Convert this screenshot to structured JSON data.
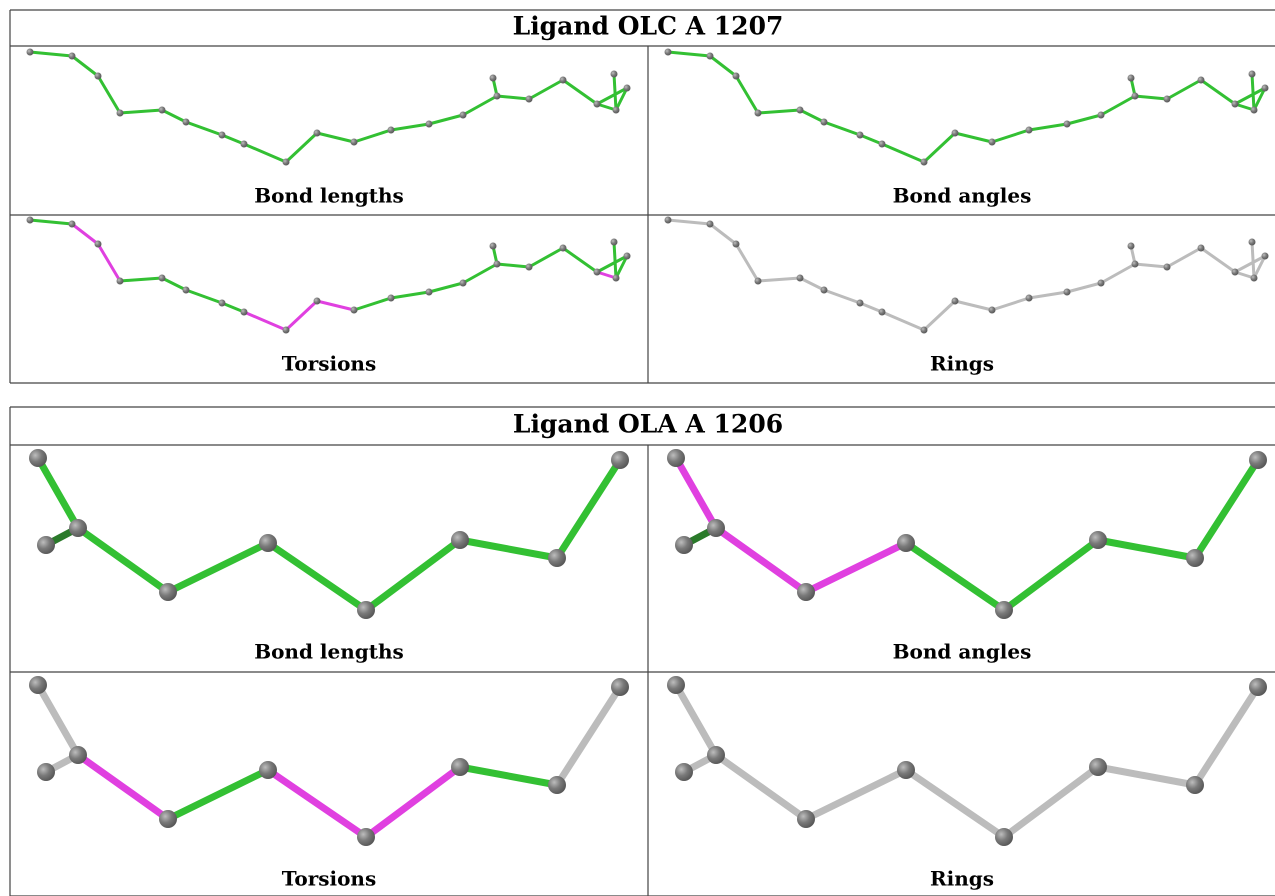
{
  "tables": [
    {
      "title": "Ligand OLC A 1207",
      "panels": [
        "Bond lengths",
        "Bond angles",
        "Torsions",
        "Rings"
      ]
    },
    {
      "title": "Ligand OLA A 1206",
      "panels": [
        "Bond lengths",
        "Bond angles",
        "Torsions",
        "Rings"
      ]
    }
  ]
}
